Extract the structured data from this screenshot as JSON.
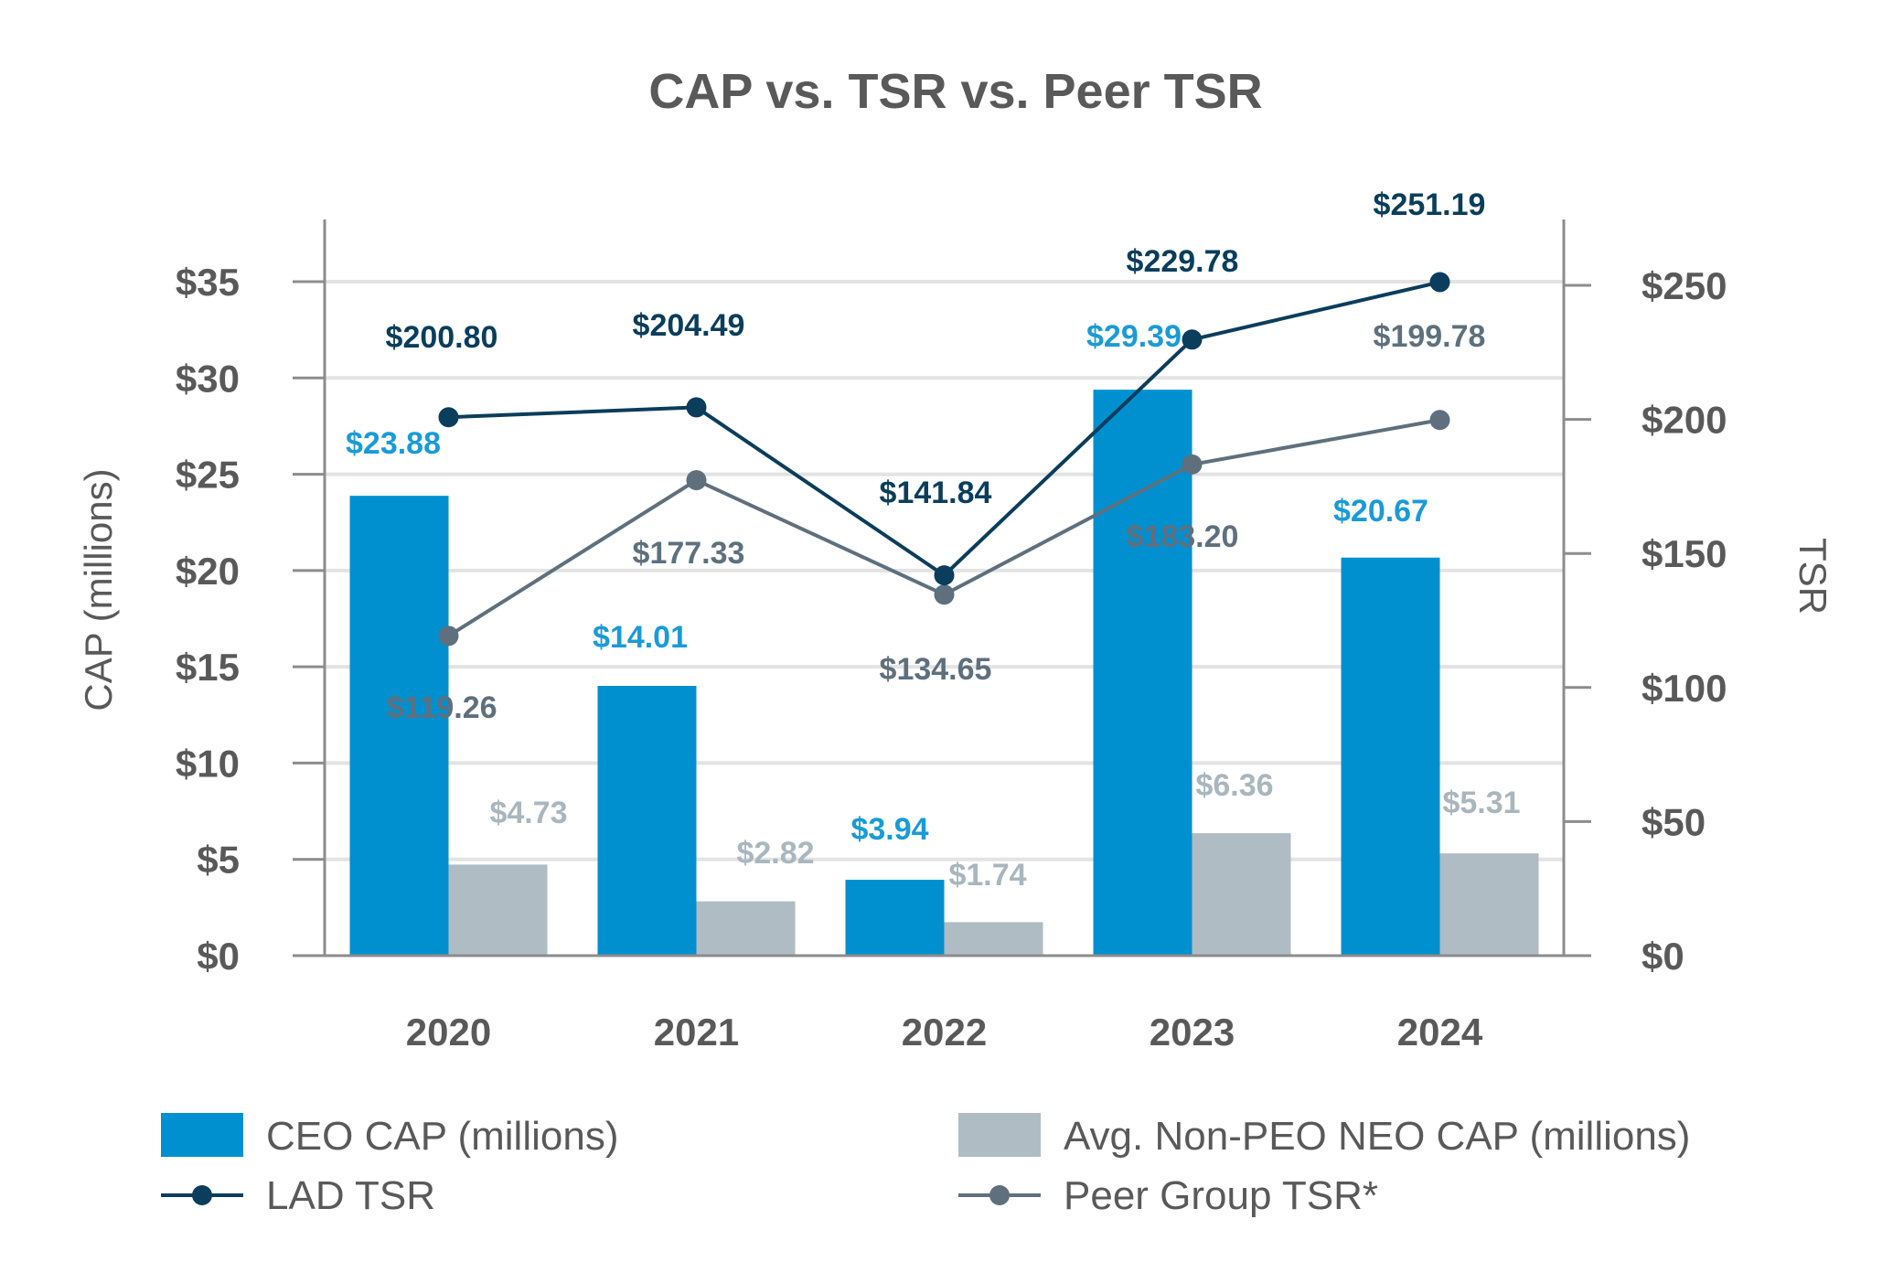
{
  "chart_data": {
    "type": "bar",
    "title": "CAP vs. TSR vs. Peer TSR",
    "categories": [
      "2020",
      "2021",
      "2022",
      "2023",
      "2024"
    ],
    "y_left": {
      "label": "CAP (millions)",
      "ticks": [
        "$0",
        "$5",
        "$10",
        "$15",
        "$20",
        "$25",
        "$30",
        "$35"
      ],
      "ylim": [
        0,
        35
      ]
    },
    "y_right": {
      "label": "TSR",
      "ticks": [
        "$0",
        "$50",
        "$100",
        "$150",
        "$200",
        "$250"
      ],
      "ylim": [
        0,
        250
      ]
    },
    "grid": true,
    "legend_position": "bottom",
    "bar_series": [
      {
        "name": "CEO CAP (millions)",
        "color": "#0090D0",
        "label_color": "#1A9BD7",
        "values": [
          23.88,
          14.01,
          3.94,
          29.39,
          20.67
        ],
        "labels": [
          "$23.88",
          "$14.01",
          "$3.94",
          "$29.39",
          "$20.67"
        ]
      },
      {
        "name": "Avg. Non-PEO NEO CAP (millions)",
        "color": "#B0BCC3",
        "label_color": "#A9B6BE",
        "values": [
          4.73,
          2.82,
          1.74,
          6.36,
          5.31
        ],
        "labels": [
          "$4.73",
          "$2.82",
          "$1.74",
          "$6.36",
          "$5.31"
        ]
      }
    ],
    "line_series": [
      {
        "name": "LAD TSR",
        "color": "#0B3D5C",
        "label_color": "#0B3D5C",
        "values": [
          200.8,
          204.49,
          141.84,
          229.78,
          251.19
        ],
        "labels": [
          "$200.80",
          "$204.49",
          "$141.84",
          "$229.78",
          "$251.19"
        ]
      },
      {
        "name": "Peer Group TSR*",
        "color": "#5E707D",
        "label_color": "#5E707D",
        "values": [
          119.26,
          177.33,
          134.65,
          183.2,
          199.78
        ],
        "labels": [
          "$119.26",
          "$177.33",
          "$134.65",
          "$183.20",
          "$199.78"
        ]
      }
    ]
  }
}
